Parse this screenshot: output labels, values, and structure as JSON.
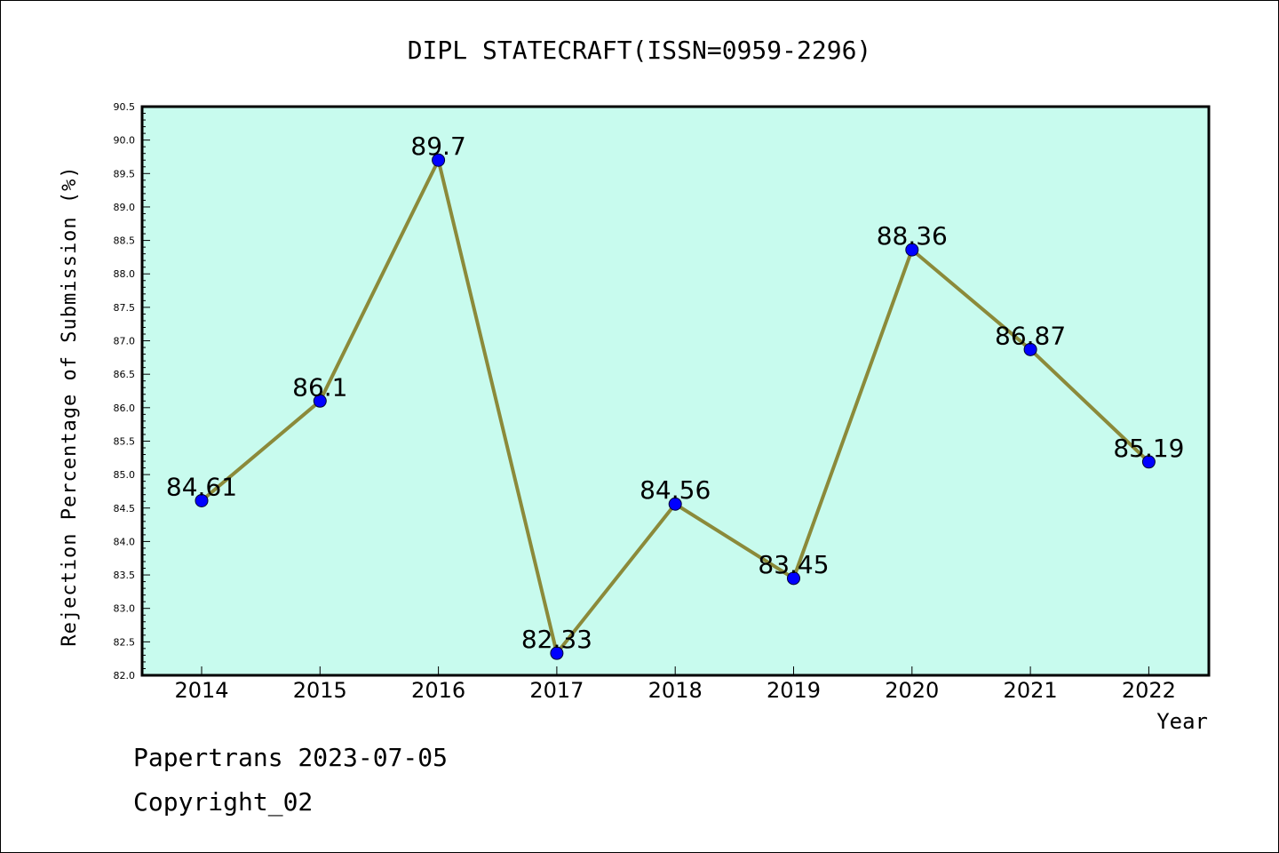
{
  "chart_data": {
    "type": "line",
    "title": "DIPL STATECRAFT(ISSN=0959-2296)",
    "xlabel": "Year",
    "ylabel": "Rejection Percentage of Submission (%)",
    "categories": [
      "2014",
      "2015",
      "2016",
      "2017",
      "2018",
      "2019",
      "2020",
      "2021",
      "2022"
    ],
    "values": [
      84.61,
      86.1,
      89.7,
      82.33,
      84.56,
      83.45,
      88.36,
      86.87,
      85.19
    ],
    "data_labels": [
      "84.61",
      "86.1",
      "89.7",
      "82.33",
      "84.56",
      "83.45",
      "88.36",
      "86.87",
      "85.19"
    ],
    "ylim": [
      82.0,
      90.5
    ],
    "yticks": [
      "82.0",
      "82.5",
      "83.0",
      "83.5",
      "84.0",
      "84.5",
      "85.0",
      "85.5",
      "86.0",
      "86.5",
      "87.0",
      "87.5",
      "88.0",
      "88.5",
      "89.0",
      "89.5",
      "90.0",
      "90.5"
    ],
    "grid": false,
    "colors": {
      "plot_background": "#c8fbee",
      "line": "#8b8a3a",
      "marker": "#0000ff"
    }
  },
  "footer": {
    "source": "Papertrans 2023-07-05",
    "copyright": "Copyright_02"
  }
}
